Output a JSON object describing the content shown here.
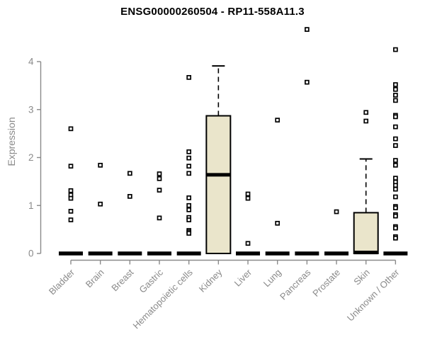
{
  "chart_data": {
    "type": "boxplot",
    "title": "ENSG00000260504 - RP11-558A11.3",
    "xlabel": "",
    "ylabel": "Expression",
    "yticks": [
      0,
      1,
      2,
      3,
      4
    ],
    "ylim": [
      0,
      4.8
    ],
    "grid": false,
    "legend": "none",
    "categories": [
      "Bladder",
      "Brain",
      "Breast",
      "Gastric",
      "Hematopoietic cells",
      "Kidney",
      "Liver",
      "Lung",
      "Pancreas",
      "Prostate",
      "Skin",
      "Unknown / Other"
    ],
    "boxes": [
      {
        "category": "Bladder",
        "whisker_low": 0,
        "q1": 0,
        "median": 0,
        "q3": 0,
        "whisker_high": 0,
        "outliers": [
          2.6,
          1.82,
          1.31,
          1.22,
          1.15,
          0.88,
          0.7
        ]
      },
      {
        "category": "Brain",
        "whisker_low": 0,
        "q1": 0,
        "median": 0,
        "q3": 0,
        "whisker_high": 0,
        "outliers": [
          1.84,
          1.03
        ]
      },
      {
        "category": "Breast",
        "whisker_low": 0,
        "q1": 0,
        "median": 0,
        "q3": 0,
        "whisker_high": 0,
        "outliers": [
          1.67,
          1.19
        ]
      },
      {
        "category": "Gastric",
        "whisker_low": 0,
        "q1": 0,
        "median": 0,
        "q3": 0,
        "whisker_high": 0,
        "outliers": [
          1.66,
          1.56,
          1.32,
          0.74
        ]
      },
      {
        "category": "Hematopoietic cells",
        "whisker_low": 0,
        "q1": 0,
        "median": 0,
        "q3": 0,
        "whisker_high": 0,
        "outliers": [
          3.67,
          2.12,
          1.99,
          1.82,
          1.67,
          1.16,
          1.0,
          0.91,
          0.75,
          0.7,
          0.48,
          0.45,
          0.42
        ]
      },
      {
        "category": "Kidney",
        "whisker_low": 0,
        "q1": 0,
        "median": 1.64,
        "q3": 2.87,
        "whisker_high": 3.91,
        "outliers": []
      },
      {
        "category": "Liver",
        "whisker_low": 0,
        "q1": 0,
        "median": 0,
        "q3": 0,
        "whisker_high": 0,
        "outliers": [
          1.24,
          1.15,
          0.21
        ]
      },
      {
        "category": "Lung",
        "whisker_low": 0,
        "q1": 0,
        "median": 0,
        "q3": 0,
        "whisker_high": 0,
        "outliers": [
          2.78,
          0.63
        ]
      },
      {
        "category": "Pancreas",
        "whisker_low": 0,
        "q1": 0,
        "median": 0,
        "q3": 0,
        "whisker_high": 0,
        "outliers": [
          4.67,
          3.57
        ]
      },
      {
        "category": "Prostate",
        "whisker_low": 0,
        "q1": 0,
        "median": 0,
        "q3": 0,
        "whisker_high": 0,
        "outliers": [
          0.87
        ]
      },
      {
        "category": "Skin",
        "whisker_low": 0,
        "q1": 0,
        "median": 0.02,
        "q3": 0.85,
        "whisker_high": 1.97,
        "outliers": [
          2.94,
          2.76
        ]
      },
      {
        "category": "Unknown / Other",
        "whisker_low": 0,
        "q1": 0,
        "median": 0,
        "q3": 0,
        "whisker_high": 0,
        "outliers": [
          4.25,
          3.52,
          3.42,
          3.3,
          3.19,
          2.88,
          2.85,
          2.64,
          2.39,
          2.25,
          1.94,
          1.84,
          1.57,
          1.49,
          1.42,
          1.34,
          1.18,
          0.98,
          0.95,
          0.81,
          0.78,
          0.56,
          0.53,
          0.35,
          0.32
        ]
      }
    ]
  },
  "colors": {
    "box_fill": "#EAE5CB",
    "box_stroke": "#000000",
    "median": "#000000",
    "outlier_stroke": "#000000",
    "outlier_fill": "#FFFFFF",
    "axis": "#8A8A8A",
    "tick_label": "#8A8A8A",
    "title_text": "#000000",
    "background": "#FFFFFF"
  }
}
